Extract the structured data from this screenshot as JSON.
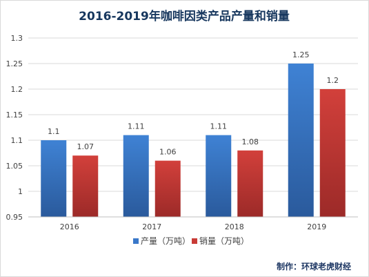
{
  "chart_data": {
    "type": "bar",
    "title": "2016-2019年咖啡因类产品产量和销量",
    "categories": [
      "2016",
      "2017",
      "2018",
      "2019"
    ],
    "series": [
      {
        "name": "产量（万吨）",
        "values": [
          1.1,
          1.11,
          1.11,
          1.25
        ],
        "color": "#3a78c9"
      },
      {
        "name": "销量（万吨）",
        "values": [
          1.07,
          1.06,
          1.08,
          1.2
        ],
        "color": "#c83b36"
      }
    ],
    "y_ticks": [
      "0.95",
      "1",
      "1.05",
      "1.1",
      "1.15",
      "1.2",
      "1.25",
      "1.3"
    ],
    "ylim": [
      0.95,
      1.3
    ],
    "grid": true,
    "legend_position": "bottom",
    "data_labels": true
  },
  "credit": "制作：环球老虎财经"
}
